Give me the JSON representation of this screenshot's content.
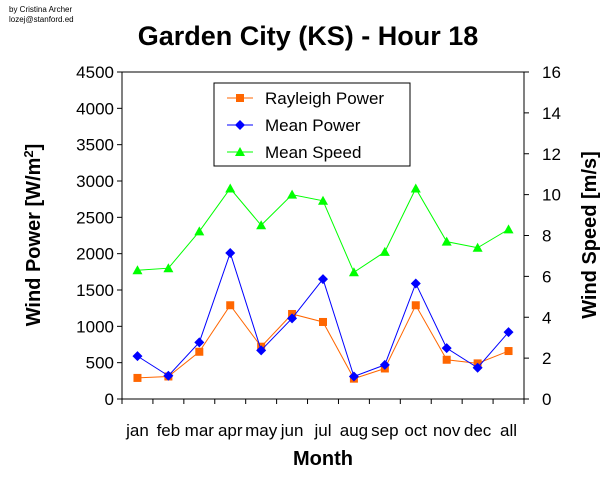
{
  "credit": {
    "line1": "by Cristina Archer",
    "line2": "lozej@stanford.ed"
  },
  "chart_data": {
    "type": "line",
    "title": "Garden City (KS) - Hour 18",
    "xlabel": "Month",
    "ylabel": "Wind Power [W/m²]",
    "ylabel_right": "Wind Speed [m/s]",
    "categories": [
      "jan",
      "feb",
      "mar",
      "apr",
      "may",
      "jun",
      "jul",
      "aug",
      "sep",
      "oct",
      "nov",
      "dec",
      "all"
    ],
    "ylim": [
      0,
      4500
    ],
    "yticks": [
      0,
      500,
      1000,
      1500,
      2000,
      2500,
      3000,
      3500,
      4000,
      4500
    ],
    "ylim_right": [
      0,
      16
    ],
    "yticks_right": [
      0,
      2,
      4,
      6,
      8,
      10,
      12,
      14,
      16
    ],
    "grid": false,
    "legend_position": "top-center",
    "series": [
      {
        "name": "Rayleigh Power",
        "axis": "left",
        "color": "#ff6600",
        "marker": "square",
        "values": [
          290,
          310,
          650,
          1290,
          720,
          1170,
          1060,
          280,
          420,
          1290,
          540,
          490,
          660
        ]
      },
      {
        "name": "Mean Power",
        "axis": "left",
        "color": "#0000ff",
        "marker": "diamond",
        "values": [
          590,
          320,
          780,
          2010,
          670,
          1110,
          1650,
          310,
          470,
          1590,
          700,
          430,
          920
        ]
      },
      {
        "name": "Mean Speed",
        "axis": "right",
        "color": "#00ff00",
        "marker": "triangle",
        "values": [
          6.3,
          6.4,
          8.2,
          10.3,
          8.5,
          10.0,
          9.7,
          6.2,
          7.2,
          10.3,
          7.7,
          7.4,
          8.3
        ]
      }
    ]
  }
}
